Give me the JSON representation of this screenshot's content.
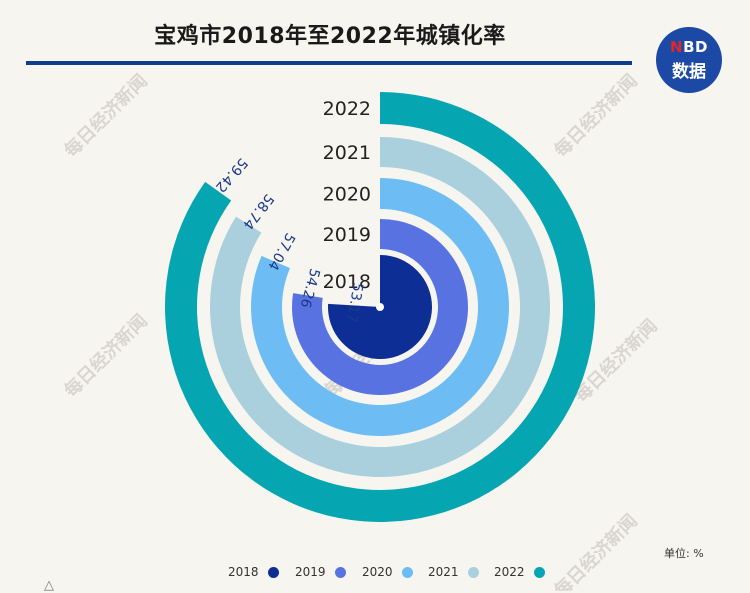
{
  "title": "宝鸡市2018年至2022年城镇化率",
  "logo": {
    "top_prefix": "N",
    "top_rest": "BD",
    "bottom": "数据"
  },
  "unit_label": "单位: %",
  "watermark_text": "每日经济新闻",
  "corner_glyph": "△",
  "colors": [
    "#0d2e95",
    "#5872e2",
    "#6dbdf4",
    "#a9d0dc",
    "#05a6b1"
  ],
  "chart_data": {
    "type": "radial-bar",
    "title": "宝鸡市2018年至2022年城镇化率",
    "unit": "单位: %",
    "categories": [
      "2018",
      "2019",
      "2020",
      "2021",
      "2022"
    ],
    "values": [
      53.17,
      54.26,
      57.04,
      58.74,
      59.42
    ],
    "value_labels": [
      "53.17",
      "54.26",
      "57.04",
      "58.74",
      "59.42"
    ],
    "legend": [
      "2018",
      "2019",
      "2020",
      "2021",
      "2022"
    ],
    "legend_position": "bottom"
  }
}
